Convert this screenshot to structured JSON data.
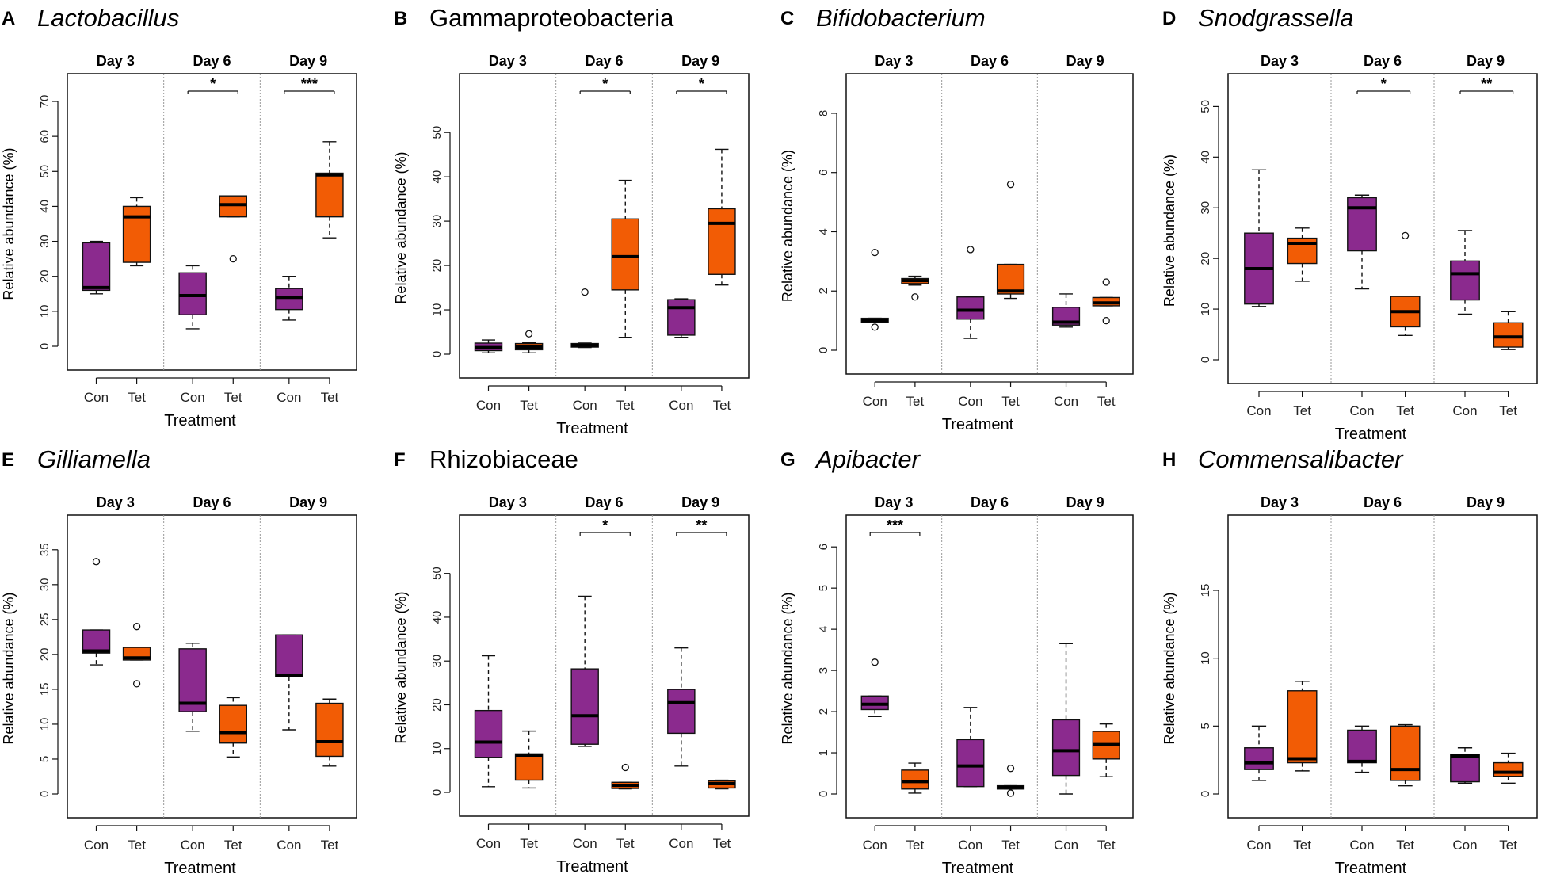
{
  "figure": {
    "common": {
      "ylabel": "Relative abundance (%)",
      "xlabel": "Treatment",
      "day_labels": [
        "Day 3",
        "Day 6",
        "Day 9"
      ],
      "categories": [
        "Con",
        "Tet",
        "Con",
        "Tet",
        "Con",
        "Tet"
      ],
      "series_colors": {
        "Con": "#8B2A8E",
        "Tet": "#F25C05"
      }
    }
  },
  "chart_data": [
    {
      "type": "boxplot",
      "letter": "A",
      "title": "Lactobacillus",
      "italic": true,
      "ylim": [
        0,
        70
      ],
      "yticks": [
        0,
        10,
        20,
        30,
        40,
        50,
        60,
        70
      ],
      "boxes": [
        {
          "day": "Day 3",
          "group": "Con",
          "min": 15.0,
          "q1": 16.0,
          "median": 16.8,
          "q3": 29.6,
          "max": 30.0,
          "outliers": []
        },
        {
          "day": "Day 3",
          "group": "Tet",
          "min": 23.0,
          "q1": 24.0,
          "median": 37.0,
          "q3": 40.0,
          "max": 42.5,
          "outliers": []
        },
        {
          "day": "Day 6",
          "group": "Con",
          "min": 5.0,
          "q1": 9.0,
          "median": 14.5,
          "q3": 21.0,
          "max": 23.0,
          "outliers": []
        },
        {
          "day": "Day 6",
          "group": "Tet",
          "min": 37.0,
          "q1": 37.0,
          "median": 40.5,
          "q3": 43.0,
          "max": 43.0,
          "outliers": [
            25.0
          ]
        },
        {
          "day": "Day 9",
          "group": "Con",
          "min": 7.5,
          "q1": 10.5,
          "median": 14.0,
          "q3": 16.5,
          "max": 20.0,
          "outliers": []
        },
        {
          "day": "Day 9",
          "group": "Tet",
          "min": 31.0,
          "q1": 37.0,
          "median": 49.0,
          "q3": 49.5,
          "max": 58.5,
          "outliers": []
        }
      ],
      "significance": [
        {
          "day": "Day 6",
          "label": "*"
        },
        {
          "day": "Day 9",
          "label": "***"
        }
      ]
    },
    {
      "type": "boxplot",
      "letter": "B",
      "title": "Gammaproteobacteria",
      "italic": false,
      "ylim": [
        0,
        57
      ],
      "yticks": [
        0,
        10,
        20,
        30,
        40,
        50
      ],
      "boxes": [
        {
          "day": "Day 3",
          "group": "Con",
          "min": 0.3,
          "q1": 0.8,
          "median": 1.5,
          "q3": 2.5,
          "max": 3.2,
          "outliers": []
        },
        {
          "day": "Day 3",
          "group": "Tet",
          "min": 0.3,
          "q1": 1.0,
          "median": 1.6,
          "q3": 2.4,
          "max": 2.6,
          "outliers": [
            4.6
          ]
        },
        {
          "day": "Day 6",
          "group": "Con",
          "min": 1.5,
          "q1": 1.6,
          "median": 2.0,
          "q3": 2.4,
          "max": 2.5,
          "outliers": [
            14.0
          ]
        },
        {
          "day": "Day 6",
          "group": "Tet",
          "min": 3.8,
          "q1": 14.5,
          "median": 22.0,
          "q3": 30.5,
          "max": 39.2,
          "outliers": []
        },
        {
          "day": "Day 9",
          "group": "Con",
          "min": 3.8,
          "q1": 4.3,
          "median": 10.5,
          "q3": 12.3,
          "max": 12.5,
          "outliers": []
        },
        {
          "day": "Day 9",
          "group": "Tet",
          "min": 15.6,
          "q1": 18.0,
          "median": 29.5,
          "q3": 32.8,
          "max": 46.2,
          "outliers": []
        }
      ],
      "significance": [
        {
          "day": "Day 6",
          "label": "*"
        },
        {
          "day": "Day 9",
          "label": "*"
        }
      ]
    },
    {
      "type": "boxplot",
      "letter": "C",
      "title": "Bifidobacterium",
      "italic": true,
      "ylim": [
        0,
        8.4
      ],
      "yticks": [
        0,
        2,
        4,
        6,
        8
      ],
      "boxes": [
        {
          "day": "Day 3",
          "group": "Con",
          "min": 0.95,
          "q1": 0.95,
          "median": 1.0,
          "q3": 1.08,
          "max": 1.08,
          "outliers": [
            0.78,
            3.3
          ]
        },
        {
          "day": "Day 3",
          "group": "Tet",
          "min": 2.2,
          "q1": 2.25,
          "median": 2.35,
          "q3": 2.42,
          "max": 2.5,
          "outliers": [
            1.8
          ]
        },
        {
          "day": "Day 6",
          "group": "Con",
          "min": 0.4,
          "q1": 1.05,
          "median": 1.35,
          "q3": 1.8,
          "max": 1.8,
          "outliers": [
            3.4
          ]
        },
        {
          "day": "Day 6",
          "group": "Tet",
          "min": 1.75,
          "q1": 1.9,
          "median": 2.0,
          "q3": 2.9,
          "max": 2.9,
          "outliers": [
            5.6
          ]
        },
        {
          "day": "Day 9",
          "group": "Con",
          "min": 0.78,
          "q1": 0.85,
          "median": 0.95,
          "q3": 1.45,
          "max": 1.9,
          "outliers": []
        },
        {
          "day": "Day 9",
          "group": "Tet",
          "min": 1.5,
          "q1": 1.5,
          "median": 1.6,
          "q3": 1.78,
          "max": 1.78,
          "outliers": [
            1.0,
            2.3
          ]
        }
      ],
      "significance": []
    },
    {
      "type": "boxplot",
      "letter": "D",
      "title": "Snodgrassella",
      "italic": true,
      "ylim": [
        0,
        51
      ],
      "yticks": [
        0,
        10,
        20,
        30,
        40,
        50
      ],
      "boxes": [
        {
          "day": "Day 3",
          "group": "Con",
          "min": 10.5,
          "q1": 11.0,
          "median": 18.0,
          "q3": 25.0,
          "max": 37.5,
          "outliers": []
        },
        {
          "day": "Day 3",
          "group": "Tet",
          "min": 15.5,
          "q1": 19.0,
          "median": 23.0,
          "q3": 24.0,
          "max": 26.0,
          "outliers": []
        },
        {
          "day": "Day 6",
          "group": "Con",
          "min": 14.0,
          "q1": 21.5,
          "median": 30.0,
          "q3": 32.0,
          "max": 32.5,
          "outliers": []
        },
        {
          "day": "Day 6",
          "group": "Tet",
          "min": 4.8,
          "q1": 6.5,
          "median": 9.5,
          "q3": 12.5,
          "max": 12.5,
          "outliers": [
            24.5
          ]
        },
        {
          "day": "Day 9",
          "group": "Con",
          "min": 9.0,
          "q1": 11.8,
          "median": 17.0,
          "q3": 19.5,
          "max": 25.5,
          "outliers": []
        },
        {
          "day": "Day 9",
          "group": "Tet",
          "min": 2.0,
          "q1": 2.5,
          "median": 4.5,
          "q3": 7.3,
          "max": 9.5,
          "outliers": []
        }
      ],
      "significance": [
        {
          "day": "Day 6",
          "label": "*"
        },
        {
          "day": "Day 9",
          "label": "**"
        }
      ]
    },
    {
      "type": "boxplot",
      "letter": "E",
      "title": "Gilliamella",
      "italic": true,
      "ylim": [
        0,
        36
      ],
      "yticks": [
        0,
        5,
        10,
        15,
        20,
        25,
        30,
        35
      ],
      "boxes": [
        {
          "day": "Day 3",
          "group": "Con",
          "min": 18.5,
          "q1": 20.2,
          "median": 20.5,
          "q3": 23.5,
          "max": 23.5,
          "outliers": [
            33.3
          ]
        },
        {
          "day": "Day 3",
          "group": "Tet",
          "min": 19.2,
          "q1": 19.2,
          "median": 19.5,
          "q3": 21.0,
          "max": 21.0,
          "outliers": [
            24.0,
            15.8
          ]
        },
        {
          "day": "Day 6",
          "group": "Con",
          "min": 9.0,
          "q1": 11.8,
          "median": 13.0,
          "q3": 20.8,
          "max": 21.6,
          "outliers": []
        },
        {
          "day": "Day 6",
          "group": "Tet",
          "min": 5.3,
          "q1": 7.3,
          "median": 8.8,
          "q3": 12.7,
          "max": 13.8,
          "outliers": []
        },
        {
          "day": "Day 9",
          "group": "Con",
          "min": 9.2,
          "q1": 16.8,
          "median": 17.0,
          "q3": 22.8,
          "max": 22.8,
          "outliers": []
        },
        {
          "day": "Day 9",
          "group": "Tet",
          "min": 4.0,
          "q1": 5.4,
          "median": 7.5,
          "q3": 13.0,
          "max": 13.6,
          "outliers": []
        }
      ],
      "significance": []
    },
    {
      "type": "boxplot",
      "letter": "F",
      "title": "Rhizobiaceae",
      "italic": false,
      "ylim": [
        0,
        57
      ],
      "yticks": [
        0,
        10,
        20,
        30,
        40,
        50
      ],
      "boxes": [
        {
          "day": "Day 3",
          "group": "Con",
          "min": 1.3,
          "q1": 8.0,
          "median": 11.5,
          "q3": 18.7,
          "max": 31.2,
          "outliers": []
        },
        {
          "day": "Day 3",
          "group": "Tet",
          "min": 1.0,
          "q1": 2.8,
          "median": 8.5,
          "q3": 8.8,
          "max": 14.0,
          "outliers": []
        },
        {
          "day": "Day 6",
          "group": "Con",
          "min": 10.5,
          "q1": 11.0,
          "median": 17.5,
          "q3": 28.2,
          "max": 44.8,
          "outliers": []
        },
        {
          "day": "Day 6",
          "group": "Tet",
          "min": 0.8,
          "q1": 0.9,
          "median": 1.6,
          "q3": 2.3,
          "max": 2.3,
          "outliers": [
            5.7
          ]
        },
        {
          "day": "Day 9",
          "group": "Con",
          "min": 6.0,
          "q1": 13.5,
          "median": 20.5,
          "q3": 23.5,
          "max": 33.0,
          "outliers": []
        },
        {
          "day": "Day 9",
          "group": "Tet",
          "min": 0.8,
          "q1": 1.0,
          "median": 2.0,
          "q3": 2.6,
          "max": 2.8,
          "outliers": []
        }
      ],
      "significance": [
        {
          "day": "Day 6",
          "label": "*"
        },
        {
          "day": "Day 9",
          "label": "**"
        }
      ]
    },
    {
      "type": "boxplot",
      "letter": "G",
      "title": "Apibacter",
      "italic": true,
      "ylim": [
        0,
        6.1
      ],
      "yticks": [
        0,
        1,
        2,
        3,
        4,
        5,
        6
      ],
      "boxes": [
        {
          "day": "Day 3",
          "group": "Con",
          "min": 1.88,
          "q1": 2.05,
          "median": 2.18,
          "q3": 2.38,
          "max": 2.38,
          "outliers": [
            3.2
          ]
        },
        {
          "day": "Day 3",
          "group": "Tet",
          "min": 0.02,
          "q1": 0.12,
          "median": 0.3,
          "q3": 0.58,
          "max": 0.75,
          "outliers": []
        },
        {
          "day": "Day 6",
          "group": "Con",
          "min": 0.18,
          "q1": 0.18,
          "median": 0.68,
          "q3": 1.32,
          "max": 2.1,
          "outliers": []
        },
        {
          "day": "Day 6",
          "group": "Tet",
          "min": 0.12,
          "q1": 0.12,
          "median": 0.16,
          "q3": 0.2,
          "max": 0.2,
          "outliers": [
            0.62,
            0.02
          ]
        },
        {
          "day": "Day 9",
          "group": "Con",
          "min": 0.0,
          "q1": 0.45,
          "median": 1.05,
          "q3": 1.8,
          "max": 3.65,
          "outliers": []
        },
        {
          "day": "Day 9",
          "group": "Tet",
          "min": 0.42,
          "q1": 0.85,
          "median": 1.2,
          "q3": 1.52,
          "max": 1.7,
          "outliers": []
        }
      ],
      "significance": [
        {
          "day": "Day 3",
          "label": "***"
        }
      ]
    },
    {
      "type": "boxplot",
      "letter": "H",
      "title": "Commensalibacter",
      "italic": true,
      "ylim": [
        0,
        18.5
      ],
      "yticks": [
        0,
        5,
        10,
        15
      ],
      "boxes": [
        {
          "day": "Day 3",
          "group": "Con",
          "min": 1.0,
          "q1": 1.8,
          "median": 2.3,
          "q3": 3.4,
          "max": 5.0,
          "outliers": []
        },
        {
          "day": "Day 3",
          "group": "Tet",
          "min": 1.7,
          "q1": 2.3,
          "median": 2.6,
          "q3": 7.6,
          "max": 8.3,
          "outliers": []
        },
        {
          "day": "Day 6",
          "group": "Con",
          "min": 1.6,
          "q1": 2.3,
          "median": 2.4,
          "q3": 4.7,
          "max": 5.0,
          "outliers": []
        },
        {
          "day": "Day 6",
          "group": "Tet",
          "min": 0.6,
          "q1": 1.0,
          "median": 1.8,
          "q3": 5.0,
          "max": 5.1,
          "outliers": []
        },
        {
          "day": "Day 9",
          "group": "Con",
          "min": 0.8,
          "q1": 0.9,
          "median": 2.8,
          "q3": 2.9,
          "max": 3.4,
          "outliers": []
        },
        {
          "day": "Day 9",
          "group": "Tet",
          "min": 0.8,
          "q1": 1.3,
          "median": 1.6,
          "q3": 2.3,
          "max": 3.0,
          "outliers": []
        }
      ],
      "significance": []
    }
  ]
}
